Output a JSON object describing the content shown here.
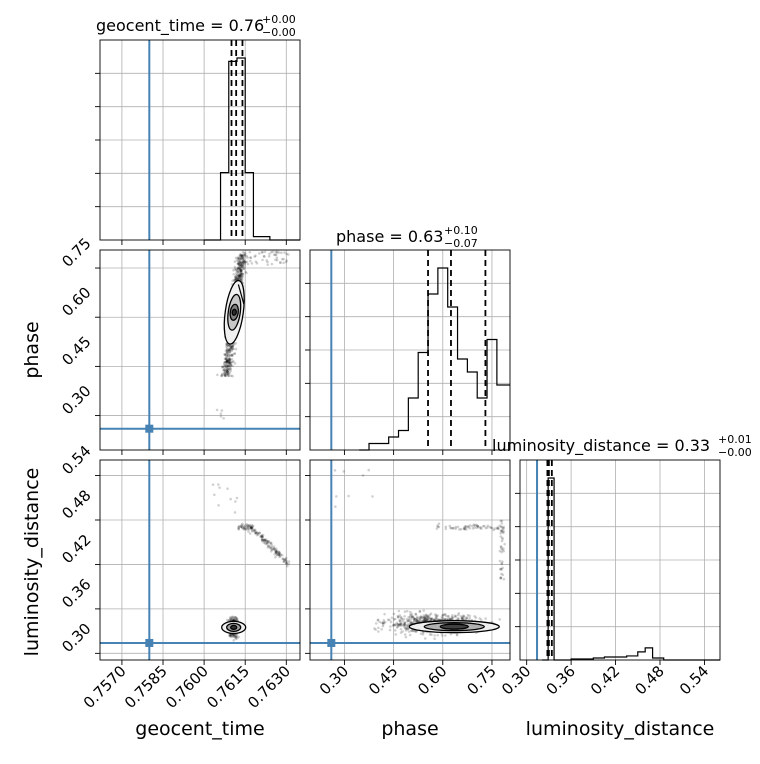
{
  "chart_data": {
    "type": "corner",
    "parameters": [
      "geocent_time",
      "phase",
      "luminosity_distance"
    ],
    "truth": {
      "geocent_time": 0.758,
      "phase": 0.26,
      "luminosity_distance": 0.314
    },
    "truth_color": "#4682b4",
    "titles": [
      {
        "name": "geocent_time",
        "eq": " = 0.76",
        "plus": "+0.00",
        "minus": "−0.00"
      },
      {
        "name": "phase",
        "eq": " = 0.63",
        "plus": "+0.10",
        "minus": "−0.07"
      },
      {
        "name": "luminosity_distance",
        "eq": " = 0.33",
        "plus": "+0.01",
        "minus": "−0.00"
      }
    ],
    "axes": {
      "geocent_time": {
        "lim": [
          0.7562,
          0.7635
        ],
        "ticks": [
          0.757,
          0.7585,
          0.76,
          0.7615,
          0.763
        ],
        "ticklabels": [
          "0.7570",
          "0.7585",
          "0.7600",
          "0.7615",
          "0.7630"
        ],
        "label": "geocent_time"
      },
      "phase": {
        "lim": [
          0.195,
          0.805
        ],
        "ticks": [
          0.3,
          0.45,
          0.6,
          0.75
        ],
        "ticklabels": [
          "0.30",
          "0.45",
          "0.60",
          "0.75"
        ],
        "label": "phase"
      },
      "luminosity_distance": {
        "lim": [
          0.291,
          0.561
        ],
        "ticks": [
          0.3,
          0.36,
          0.42,
          0.48,
          0.54
        ],
        "ticklabels": [
          "0.30",
          "0.36",
          "0.42",
          "0.48",
          "0.54"
        ],
        "label": "luminosity_distance"
      }
    },
    "histograms": {
      "geocent_time": {
        "bins": [
          0.76,
          0.7606,
          0.7609,
          0.7612,
          0.7615,
          0.7618,
          0.7621,
          0.7624,
          0.7627,
          0.763,
          0.7635
        ],
        "counts": [
          0,
          20,
          53,
          54,
          20,
          1,
          1,
          0,
          0,
          0
        ],
        "quantiles": [
          0.761,
          0.76117,
          0.7614
        ]
      },
      "phase": {
        "bins": [
          0.345,
          0.375,
          0.405,
          0.435,
          0.465,
          0.495,
          0.525,
          0.555,
          0.585,
          0.615,
          0.645,
          0.675,
          0.705,
          0.735,
          0.765,
          0.805
        ],
        "counts": [
          0,
          1,
          1,
          2,
          3,
          8,
          15,
          24,
          28,
          22,
          14,
          12,
          8,
          17,
          10
        ],
        "quantiles": [
          0.555,
          0.625,
          0.73
        ]
      },
      "luminosity_distance": {
        "bins": [
          0.321,
          0.329,
          0.333,
          0.337,
          0.345,
          0.36,
          0.375,
          0.39,
          0.405,
          0.42,
          0.435,
          0.45,
          0.46,
          0.47,
          0.485,
          0.561
        ],
        "counts": [
          0,
          9,
          9,
          0,
          0,
          0.05,
          0.05,
          0.1,
          0.15,
          0.15,
          0.2,
          0.4,
          0.6,
          0.1,
          0
        ],
        "quantiles": [
          0.328,
          0.33,
          0.334
        ]
      }
    },
    "grid": true
  }
}
